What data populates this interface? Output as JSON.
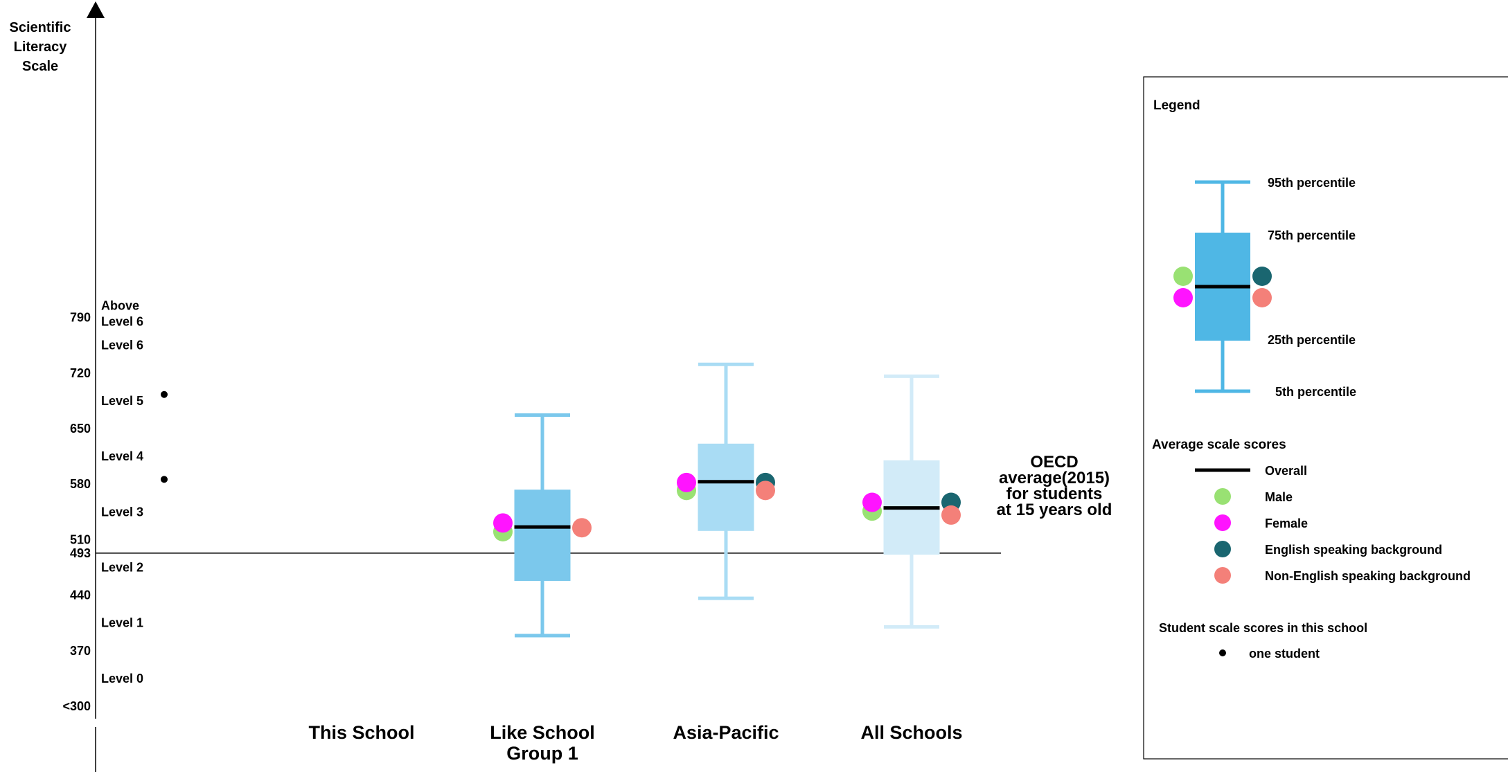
{
  "chart_data": {
    "type": "boxplot",
    "y_axis_title": [
      "Scientific",
      "Literacy",
      "Scale"
    ],
    "ylim": [
      300,
      870
    ],
    "y_ticks": [
      {
        "label": "790",
        "value": 790
      },
      {
        "label": "720",
        "value": 720
      },
      {
        "label": "650",
        "value": 650
      },
      {
        "label": "580",
        "value": 580
      },
      {
        "label": "510",
        "value": 510
      },
      {
        "label": "493",
        "value": 493
      },
      {
        "label": "440",
        "value": 440
      },
      {
        "label": "370",
        "value": 370
      },
      {
        "label": "<300",
        "value": 300
      }
    ],
    "levels": [
      {
        "label": [
          "Above",
          "Level 6"
        ],
        "value": 805
      },
      {
        "label": [
          "Level 6"
        ],
        "value": 755
      },
      {
        "label": [
          "Level 5"
        ],
        "value": 685
      },
      {
        "label": [
          "Level 4"
        ],
        "value": 615
      },
      {
        "label": [
          "Level 3"
        ],
        "value": 545
      },
      {
        "label": [
          "Level 2"
        ],
        "value": 475
      },
      {
        "label": [
          "Level 1"
        ],
        "value": 405
      },
      {
        "label": [
          "Level 0"
        ],
        "value": 335
      }
    ],
    "reference_line": {
      "value": 493,
      "label": [
        "OECD",
        "average(2015)",
        "for students",
        "at 15 years old"
      ]
    },
    "categories": [
      {
        "label": [
          "This School"
        ],
        "box": null,
        "students": [
          693,
          586
        ]
      },
      {
        "label": [
          "Like School",
          "Group 1"
        ],
        "color": "#7bc8ec",
        "box": {
          "p5": 389,
          "p25": 458,
          "median": 526,
          "p75": 573,
          "p95": 667
        },
        "groups": {
          "male": 520,
          "female": 531,
          "english": null,
          "non_english": 525
        }
      },
      {
        "label": [
          "Asia-Pacific"
        ],
        "color": "#a9dcf4",
        "box": {
          "p5": 436,
          "p25": 521,
          "median": 583,
          "p75": 631,
          "p95": 731
        },
        "groups": {
          "male": 572,
          "female": 582,
          "english": 582,
          "non_english": 572
        }
      },
      {
        "label": [
          "All Schools"
        ],
        "color": "#d2ebf8",
        "box": {
          "p5": 400,
          "p25": 491,
          "median": 550,
          "p75": 610,
          "p95": 716
        },
        "groups": {
          "male": 546,
          "female": 557,
          "english": 557,
          "non_english": 541
        }
      }
    ],
    "group_colors": {
      "male": "#99e173",
      "female": "#ff14ff",
      "english": "#1a6670",
      "non_english": "#f48079"
    },
    "legend": {
      "title": "Legend",
      "box_color": "#4fb7e5",
      "percentiles": {
        "p95": "95th percentile",
        "p75": "75th percentile",
        "p25": "25th percentile",
        "p5": "5th percentile"
      },
      "avg_title": "Average scale scores",
      "avg_items": {
        "overall": "Overall",
        "male": "Male",
        "female": "Female",
        "english": "English speaking background",
        "non_english": "Non-English speaking background"
      },
      "students_title": "Student scale scores in this school",
      "student_item": "one student"
    }
  }
}
